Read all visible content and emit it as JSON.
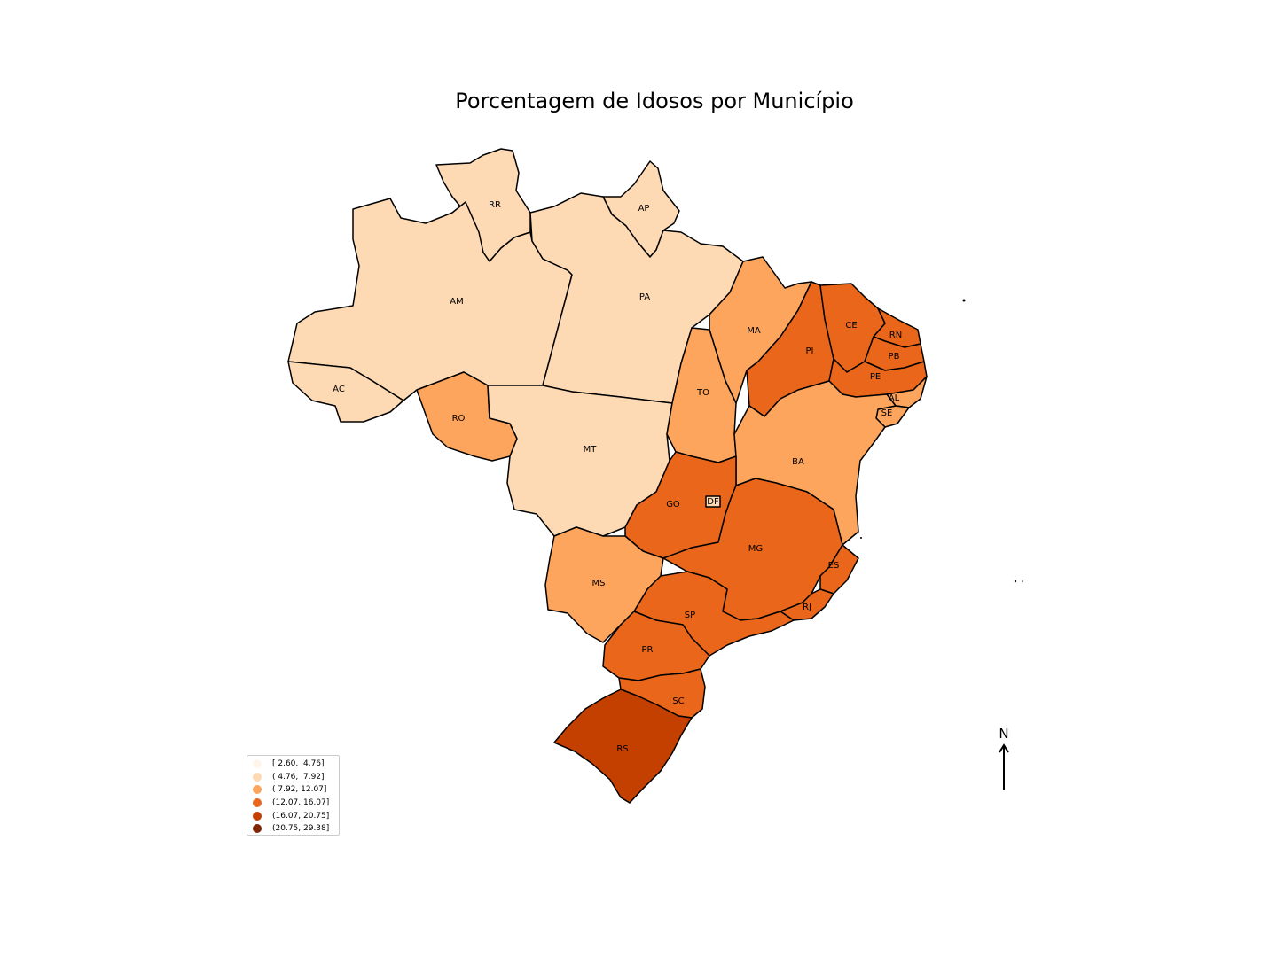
{
  "title": "Porcentagem de Idosos por Município",
  "legend": [
    {
      "label": "[ 2.60,  4.76]",
      "color": "#fff5eb"
    },
    {
      "label": "( 4.76,  7.92]",
      "color": "#fdd9b4"
    },
    {
      "label": "( 7.92, 12.07]",
      "color": "#fda45d"
    },
    {
      "label": "(12.07, 16.07]",
      "color": "#e9661b"
    },
    {
      "label": "(16.07, 20.75]",
      "color": "#c34001"
    },
    {
      "label": "(20.75, 29.38]",
      "color": "#7f2704"
    }
  ],
  "states": [
    {
      "code": "RR",
      "class": 1
    },
    {
      "code": "AP",
      "class": 1
    },
    {
      "code": "AM",
      "class": 1
    },
    {
      "code": "PA",
      "class": 1
    },
    {
      "code": "AC",
      "class": 1
    },
    {
      "code": "RO",
      "class": 2
    },
    {
      "code": "MT",
      "class": 1
    },
    {
      "code": "MA",
      "class": 2
    },
    {
      "code": "TO",
      "class": 2
    },
    {
      "code": "PI",
      "class": 3
    },
    {
      "code": "CE",
      "class": 3
    },
    {
      "code": "RN",
      "class": 3
    },
    {
      "code": "PB",
      "class": 3
    },
    {
      "code": "PE",
      "class": 3
    },
    {
      "code": "AL",
      "class": 2
    },
    {
      "code": "SE",
      "class": 2
    },
    {
      "code": "BA",
      "class": 2
    },
    {
      "code": "GO",
      "class": 3
    },
    {
      "code": "DF",
      "class": 1
    },
    {
      "code": "MS",
      "class": 2
    },
    {
      "code": "MG",
      "class": 3
    },
    {
      "code": "ES",
      "class": 3
    },
    {
      "code": "RJ",
      "class": 3
    },
    {
      "code": "SP",
      "class": 3
    },
    {
      "code": "PR",
      "class": 3
    },
    {
      "code": "SC",
      "class": 3
    },
    {
      "code": "RS",
      "class": 4
    }
  ],
  "north_arrow": {
    "label": "N"
  }
}
